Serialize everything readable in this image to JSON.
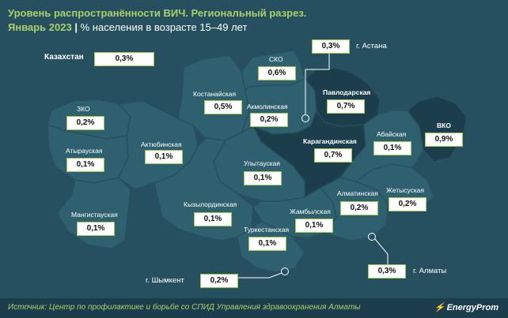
{
  "title": "Уровень распространённости ВИЧ. Региональный разрез.",
  "period": "Январь 2023",
  "separator": "|",
  "subtitle": "% населения в возрасте 15–49 лет",
  "country": {
    "name": "Казахстан",
    "value": "0,3%"
  },
  "regions": {
    "zko": {
      "name": "ЗКО",
      "value": "0,2%"
    },
    "atyrau": {
      "name": "Атырауская",
      "value": "0,1%"
    },
    "mangistau": {
      "name": "Мангистауская",
      "value": "0,1%"
    },
    "aktobe": {
      "name": "Актюбинская",
      "value": "0,1%"
    },
    "kostanay": {
      "name": "Костанайская",
      "value": "0,5%"
    },
    "sko": {
      "name": "СКО",
      "value": "0,6%"
    },
    "akmola": {
      "name": "Акмолинская",
      "value": "0,2%"
    },
    "pavlodar": {
      "name": "Павлодарская",
      "value": "0,7%"
    },
    "karaganda": {
      "name": "Карагандинская",
      "value": "0,7%"
    },
    "ulytau": {
      "name": "Улытауская",
      "value": "0,1%"
    },
    "kyzylorda": {
      "name": "Кызылординская",
      "value": "0,1%"
    },
    "turkestan": {
      "name": "Туркестанская",
      "value": "0,1%"
    },
    "zhambyl": {
      "name": "Жамбылская",
      "value": "0,1%"
    },
    "almaty_reg": {
      "name": "Алматинская",
      "value": "0,2%"
    },
    "zhetysu": {
      "name": "Жетысуская",
      "value": "0,2%"
    },
    "abai": {
      "name": "Абайская",
      "value": "0,1%"
    },
    "vko": {
      "name": "ВКО",
      "value": "0,9%"
    }
  },
  "cities": {
    "astana": {
      "name": "г. Астана",
      "value": "0,3%"
    },
    "almaty": {
      "name": "г. Алматы",
      "value": "0,3%"
    },
    "shymkent": {
      "name": "г. Шымкент",
      "value": "0,2%"
    }
  },
  "source": "Источник: Центр по профилактике и борьбе со СПИД Управления здравоохранения Алматы",
  "logo": "EnergyProm",
  "colors": {
    "background": "#26505f",
    "region_light": "#2f6070",
    "region_dark": "#1c3e4c",
    "accent": "#a8d06a",
    "box_border": "#9ccc4c"
  }
}
